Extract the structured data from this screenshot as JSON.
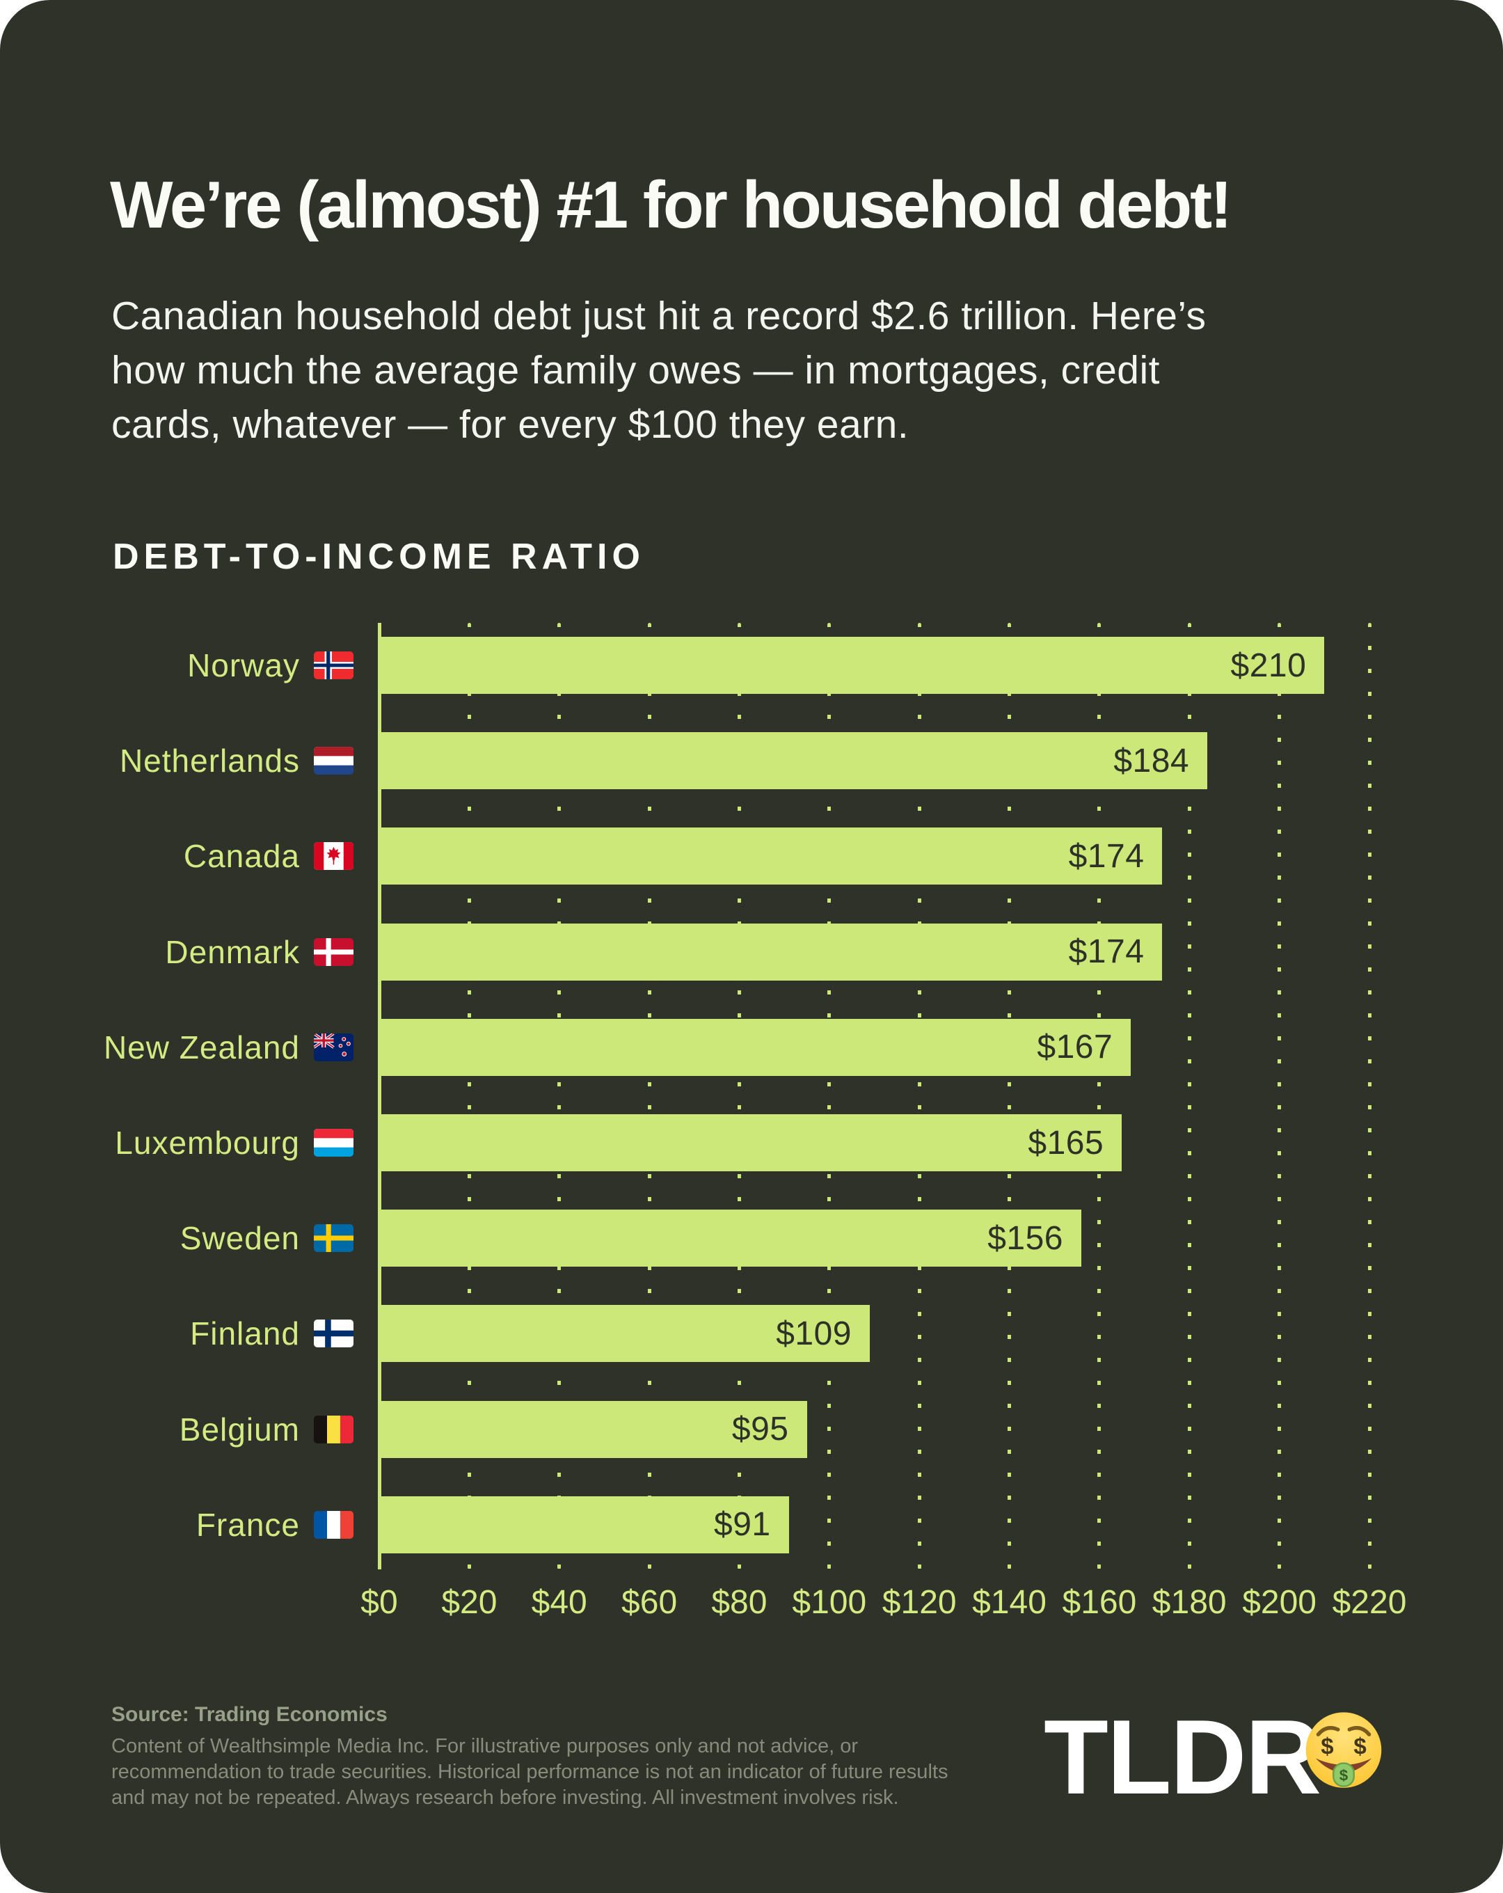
{
  "header": {
    "title": "We’re (almost) #1 for household debt!",
    "subtitle": "Canadian household debt just hit a record $2.6 trillion. Here’s\nhow much the average family owes — in mortgages, credit\ncards, whatever — for every $100 they earn."
  },
  "chart": {
    "heading": "DEBT-TO-INCOME RATIO"
  },
  "chart_data": {
    "type": "bar",
    "orientation": "horizontal",
    "title": "DEBT-TO-INCOME RATIO",
    "xlabel": "",
    "ylabel": "",
    "xlim": [
      0,
      220
    ],
    "x_tick_step": 20,
    "x_ticks": [
      "$0",
      "$20",
      "$40",
      "$60",
      "$80",
      "$100",
      "$120",
      "$140",
      "$160",
      "$180",
      "$200",
      "$220"
    ],
    "grid": "dotted vertical gridlines at each $20",
    "legend": "none",
    "categories": [
      "Norway",
      "Netherlands",
      "Canada",
      "Denmark",
      "New Zealand",
      "Luxembourg",
      "Sweden",
      "Finland",
      "Belgium",
      "France"
    ],
    "values": [
      210,
      184,
      174,
      174,
      167,
      165,
      156,
      109,
      95,
      91
    ],
    "rows": [
      {
        "country": "Norway",
        "flag": "norway-flag-icon",
        "value": 210,
        "label": "$210"
      },
      {
        "country": "Netherlands",
        "flag": "netherlands-flag-icon",
        "value": 184,
        "label": "$184"
      },
      {
        "country": "Canada",
        "flag": "canada-flag-icon",
        "value": 174,
        "label": "$174"
      },
      {
        "country": "Denmark",
        "flag": "denmark-flag-icon",
        "value": 174,
        "label": "$174"
      },
      {
        "country": "New Zealand",
        "flag": "new-zealand-flag-icon",
        "value": 167,
        "label": "$167"
      },
      {
        "country": "Luxembourg",
        "flag": "luxembourg-flag-icon",
        "value": 165,
        "label": "$165"
      },
      {
        "country": "Sweden",
        "flag": "sweden-flag-icon",
        "value": 156,
        "label": "$156"
      },
      {
        "country": "Finland",
        "flag": "finland-flag-icon",
        "value": 109,
        "label": "$109"
      },
      {
        "country": "Belgium",
        "flag": "belgium-flag-icon",
        "value": 95,
        "label": "$95"
      },
      {
        "country": "France",
        "flag": "france-flag-icon",
        "value": 91,
        "label": "$91"
      }
    ],
    "bar_color": "#CBE878",
    "label_color": "#D3EB82",
    "value_text_color": "#2E3127"
  },
  "footer": {
    "source": "Source: Trading Economics",
    "disclaimer": "Content of Wealthsimple Media Inc. For illustrative purposes only and not advice, or\nrecommendation to trade securities. Historical performance is not an indicator of future results\nand may not be repeated. Always research before investing. All investment involves risk.",
    "logo_text": "TLDR",
    "logo_icon": "money-mouth-face-icon"
  },
  "colors": {
    "card_background": "#2F3228",
    "page_background": "#FFFFFF",
    "accent": "#CBE878",
    "heading_text": "#FFFFFF",
    "muted_text": "#878C7C"
  }
}
